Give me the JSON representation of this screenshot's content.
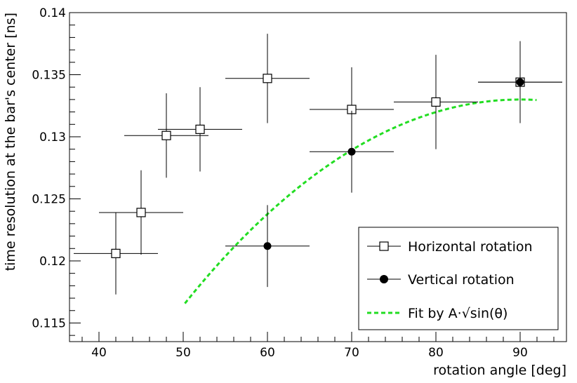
{
  "chart_data": {
    "type": "scatter",
    "xlabel": "rotation angle [deg]",
    "ylabel": "time resolution at the bar's center [ns]",
    "xlim": [
      36.5,
      95.5
    ],
    "ylim": [
      0.1135,
      0.14
    ],
    "x_ticks": [
      40,
      50,
      60,
      70,
      80,
      90
    ],
    "x_tick_labels": [
      "40",
      "50",
      "60",
      "70",
      "80",
      "90"
    ],
    "x_minor_step": 2,
    "y_ticks": [
      0.115,
      0.12,
      0.125,
      0.13,
      0.135,
      0.14
    ],
    "y_tick_labels": [
      "0.115",
      "0.12",
      "0.125",
      "0.13",
      "0.135",
      "0.14"
    ],
    "y_minor_step": 0.001,
    "grid": false,
    "legend_position": "bottom-right",
    "series": [
      {
        "name": "Horizontal rotation",
        "marker": "open-square",
        "color": "#000000",
        "points": [
          {
            "x": 42,
            "y": 0.1206,
            "xerr": 5,
            "yerr": 0.0033
          },
          {
            "x": 45,
            "y": 0.1239,
            "xerr": 5,
            "yerr": 0.0034
          },
          {
            "x": 48,
            "y": 0.1301,
            "xerr": 5,
            "yerr": 0.0034
          },
          {
            "x": 52,
            "y": 0.1306,
            "xerr": 5,
            "yerr": 0.0034
          },
          {
            "x": 60,
            "y": 0.1347,
            "xerr": 5,
            "yerr": 0.0036
          },
          {
            "x": 70,
            "y": 0.1322,
            "xerr": 5,
            "yerr": 0.0034
          },
          {
            "x": 80,
            "y": 0.1328,
            "xerr": 5,
            "yerr": 0.0038
          },
          {
            "x": 90,
            "y": 0.1344,
            "xerr": 5,
            "yerr": 0.0033
          }
        ]
      },
      {
        "name": "Vertical rotation",
        "marker": "filled-circle",
        "color": "#000000",
        "points": [
          {
            "x": 60,
            "y": 0.1212,
            "xerr": 5,
            "yerr": 0.0033
          },
          {
            "x": 70,
            "y": 0.1288,
            "xerr": 5,
            "yerr": 0.0033
          },
          {
            "x": 90,
            "y": 0.1344,
            "xerr": 5,
            "yerr": 0.0033
          }
        ]
      }
    ],
    "fit": {
      "name": "Fit by A·√sin(θ)",
      "color": "#22dd22",
      "line_style": "dashed",
      "A": 0.133,
      "x_range": [
        50.2,
        92
      ]
    }
  }
}
